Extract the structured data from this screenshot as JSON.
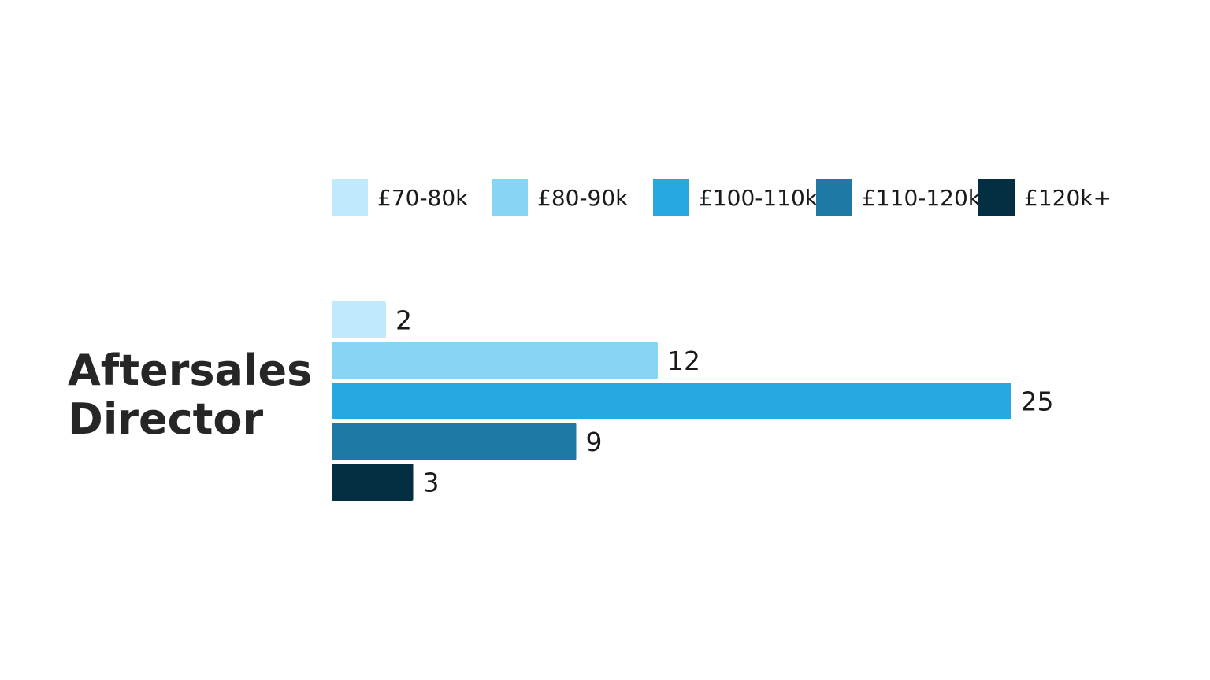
{
  "chart_data": {
    "type": "bar",
    "orientation": "horizontal",
    "category": "Aftersales Director",
    "category_lines": [
      "Aftersales",
      "Director"
    ],
    "series": [
      {
        "name": "£70-80k",
        "value": 2,
        "color": "#c0eafc"
      },
      {
        "name": "£80-90k",
        "value": 12,
        "color": "#88d4f5"
      },
      {
        "name": "£100-110k",
        "value": 25,
        "color": "#27a8e0"
      },
      {
        "name": "£110-120k",
        "value": 9,
        "color": "#1e79a5"
      },
      {
        "name": "£120k+",
        "value": 3,
        "color": "#042f42"
      }
    ],
    "xlim": [
      0,
      25
    ],
    "legend_position": "top",
    "grid": false,
    "data_labels": true
  }
}
